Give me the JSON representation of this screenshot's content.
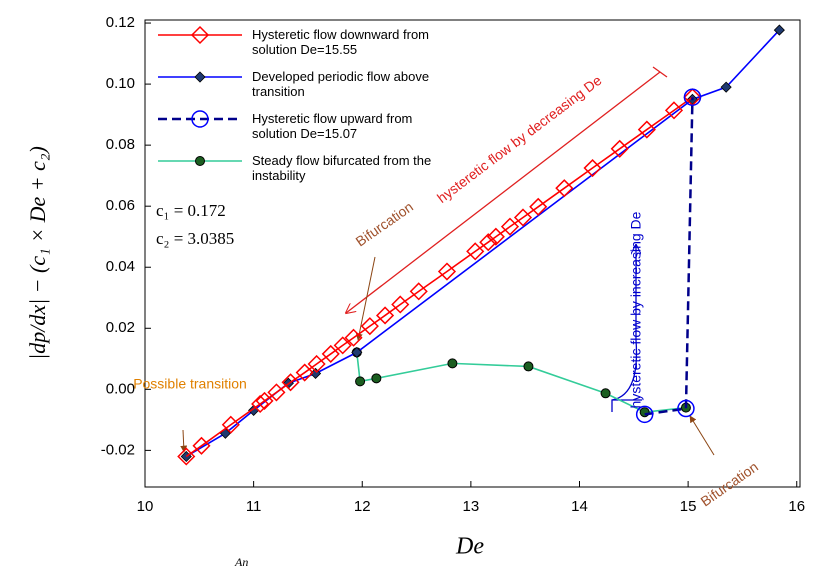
{
  "chart_data": {
    "type": "line",
    "xlabel": "De",
    "ylabel": "|dp/dx| − (c₁ × De + c₂)",
    "xlim": [
      10,
      16.03
    ],
    "ylim": [
      -0.032,
      0.121
    ],
    "xticks": [
      10,
      11,
      12,
      13,
      14,
      15,
      16
    ],
    "yticks": [
      {
        "value": -0.02,
        "label": "-0.02"
      },
      {
        "value": 0,
        "label": "0.00"
      },
      {
        "value": 0.02,
        "label": "0.02"
      },
      {
        "value": 0.04,
        "label": "0.04"
      },
      {
        "value": 0.06,
        "label": "0.06"
      },
      {
        "value": 0.08,
        "label": "0.08"
      },
      {
        "value": 0.1,
        "label": "0.10"
      },
      {
        "value": 0.12,
        "label": "0.12"
      }
    ],
    "series": [
      {
        "name": "Hysteretic flow downward from solution De=15.55",
        "color": "#ff0000",
        "marker": "diamond-open",
        "x": [
          10.38,
          10.52,
          10.79,
          11.06,
          11.1,
          11.21,
          11.34,
          11.47,
          11.58,
          11.71,
          11.82,
          11.92,
          12.07,
          12.21,
          12.35,
          12.52,
          12.78,
          13.04,
          13.16,
          13.23,
          13.36,
          13.48,
          13.62,
          13.86,
          14.12,
          14.37,
          14.62,
          14.87,
          15.04
        ],
        "values": [
          -0.022,
          -0.0185,
          -0.0116,
          -0.0048,
          -0.0038,
          -0.001,
          0.0023,
          0.0055,
          0.0083,
          0.0116,
          0.0144,
          0.0169,
          0.0207,
          0.0242,
          0.0278,
          0.0321,
          0.0386,
          0.0452,
          0.0482,
          0.05,
          0.0533,
          0.0563,
          0.0598,
          0.0659,
          0.0725,
          0.0788,
          0.0851,
          0.0914,
          0.0957
        ]
      },
      {
        "name": "Developed periodic flow above transition",
        "color": "#0000ff",
        "marker": "diamond-filled",
        "x": [
          10.38,
          10.74,
          11.0,
          11.32,
          11.57,
          11.95,
          15.04,
          15.35,
          15.84
        ],
        "values": [
          -0.022,
          -0.0144,
          -0.0069,
          0.002,
          0.0052,
          0.0121,
          0.095,
          0.099,
          0.1177
        ]
      },
      {
        "name": "Hysteretic flow upward from solution De=15.07",
        "color": "#00008b",
        "marker": "circle-open",
        "dashed": true,
        "x": [
          14.6,
          14.98,
          15.04
        ],
        "values": [
          -0.0082,
          -0.0063,
          0.0957
        ]
      },
      {
        "name": "Steady flow bifurcated from the instability",
        "color": "#33cc99",
        "marker": "circle-filled",
        "x": [
          11.95,
          11.98,
          12.13,
          12.83,
          13.53,
          14.24,
          14.6,
          14.98
        ],
        "values": [
          0.0121,
          0.0026,
          0.0036,
          0.0085,
          0.0075,
          -0.0013,
          -0.0075,
          -0.006
        ]
      }
    ],
    "annotations": [
      "hysteretic flow by decreasing De",
      "hysteretic flow by increasing De",
      "Bifurcation",
      "Bifurcation",
      "Possible transition",
      "c₁ = 0.172",
      "c₂ = 3.0385",
      "An"
    ]
  }
}
